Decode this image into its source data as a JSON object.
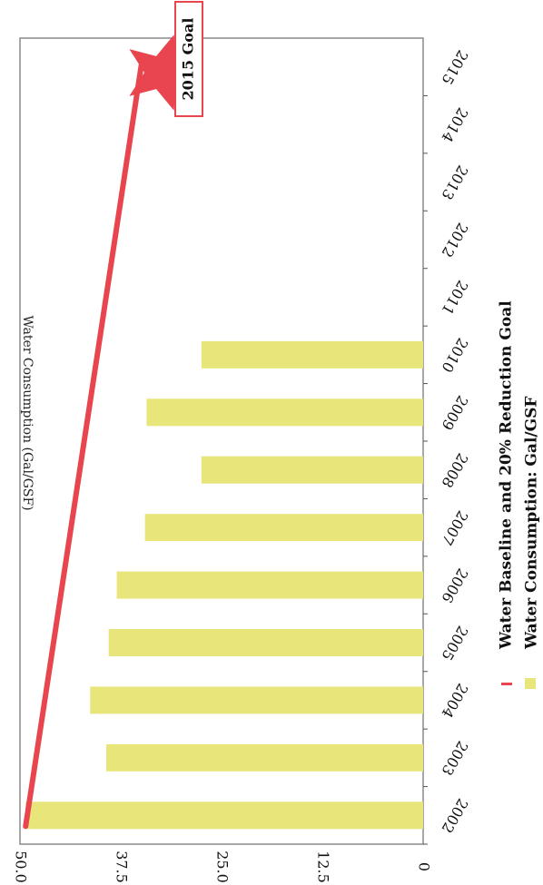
{
  "chart_data": {
    "type": "bar",
    "orientation": "vertical",
    "ylabel": "Water Consumption (Gal/GSF)",
    "xlabel": "",
    "ylim": [
      0,
      50
    ],
    "yticks": [
      "0",
      "12.5",
      "25.0",
      "37.5",
      "50.0"
    ],
    "ytick_values": [
      0,
      12.5,
      25,
      37.5,
      50
    ],
    "categories": [
      "2002",
      "2003",
      "2004",
      "2005",
      "2006",
      "2007",
      "2008",
      "2009",
      "2010",
      "2011",
      "2012",
      "2013",
      "2014",
      "2015"
    ],
    "series": [
      {
        "name": "Water Consumption: Gal/GSF",
        "color": "#e8e67a",
        "values": [
          49.3,
          39.3,
          41.3,
          39.0,
          38.0,
          34.5,
          27.5,
          34.3,
          27.5,
          null,
          null,
          null,
          null,
          null
        ]
      },
      {
        "name": "Water Baseline and 20% Reduction Goal",
        "type": "line",
        "color": "#e8454f",
        "x": [
          "2002",
          "2015"
        ],
        "values": [
          49.3,
          39.4
        ]
      }
    ],
    "annotations": [
      {
        "text": "2015 Goal",
        "x": "2015",
        "y": 39.4,
        "marker": "star"
      }
    ],
    "legend_position": "bottom",
    "grid": false
  }
}
